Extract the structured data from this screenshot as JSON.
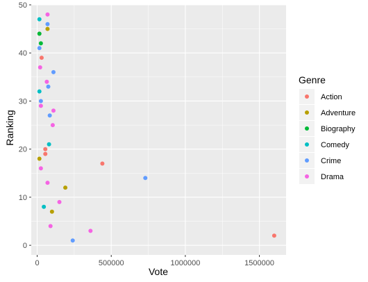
{
  "chart_data": {
    "type": "scatter",
    "xlabel": "Vote",
    "ylabel": "Ranking",
    "xlim": [
      -40000,
      1680000
    ],
    "ylim": [
      -2,
      50
    ],
    "x_ticks": [
      0,
      500000,
      1000000,
      1500000
    ],
    "x_tick_labels": [
      "0",
      "500000",
      "1000000",
      "1500000"
    ],
    "y_ticks": [
      0,
      10,
      20,
      30,
      40,
      50
    ],
    "y_tick_labels": [
      "0",
      "10",
      "20",
      "30",
      "40",
      "50"
    ],
    "grid": true,
    "legend": {
      "title": "Genre",
      "position": "right"
    },
    "series": [
      {
        "name": "Action",
        "color": "#F8766D",
        "points": [
          [
            1600000,
            2
          ],
          [
            440000,
            17
          ],
          [
            55000,
            19
          ],
          [
            55000,
            20
          ],
          [
            30000,
            39
          ],
          [
            15000,
            44
          ]
        ]
      },
      {
        "name": "Adventure",
        "color": "#B79F00",
        "points": [
          [
            100000,
            7
          ],
          [
            190000,
            12
          ],
          [
            15000,
            18
          ],
          [
            70000,
            45
          ]
        ]
      },
      {
        "name": "Biography",
        "color": "#00BA38",
        "points": [
          [
            15000,
            44
          ],
          [
            25000,
            42
          ]
        ]
      },
      {
        "name": "Comedy",
        "color": "#00BFC4",
        "points": [
          [
            45000,
            8
          ],
          [
            80000,
            21
          ],
          [
            15000,
            32
          ],
          [
            15000,
            47
          ]
        ]
      },
      {
        "name": "Crime",
        "color": "#619CFF",
        "points": [
          [
            240000,
            1
          ],
          [
            730000,
            14
          ],
          [
            85000,
            27
          ],
          [
            25000,
            30
          ],
          [
            75000,
            33
          ],
          [
            110000,
            36
          ],
          [
            15000,
            41
          ],
          [
            70000,
            46
          ]
        ]
      },
      {
        "name": "Drama",
        "color": "#F564E3",
        "points": [
          [
            360000,
            3
          ],
          [
            90000,
            4
          ],
          [
            150000,
            9
          ],
          [
            70000,
            13
          ],
          [
            25000,
            16
          ],
          [
            105000,
            25
          ],
          [
            110000,
            28
          ],
          [
            25000,
            29
          ],
          [
            65000,
            34
          ],
          [
            20000,
            37
          ],
          [
            70000,
            48
          ]
        ]
      }
    ]
  }
}
